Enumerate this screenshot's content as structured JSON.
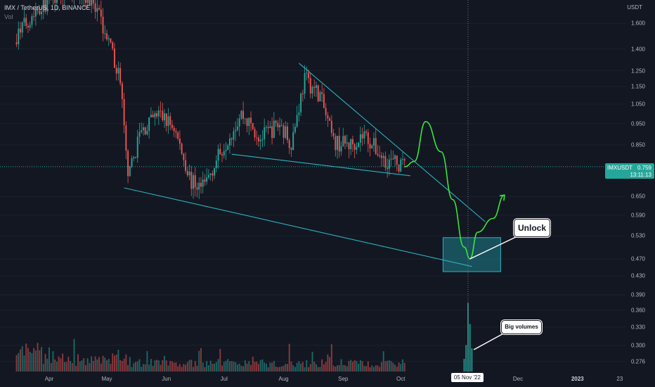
{
  "header": {
    "title": "IMX / TetherUS, 1D, BINANCE",
    "volume_label": "Vol"
  },
  "axis": {
    "unit": "USDT",
    "y_ticks": [
      "1.600",
      "1.400",
      "1.250",
      "1.150",
      "1.050",
      "0.950",
      "0.850",
      "0.650",
      "0.590",
      "0.530",
      "0.470",
      "0.430",
      "0.390",
      "0.360",
      "0.330",
      "0.300",
      "0.276"
    ],
    "x_ticks": [
      "Apr",
      "May",
      "Jun",
      "Jul",
      "Aug",
      "Sep",
      "Oct",
      "Dec",
      "2023",
      "23"
    ]
  },
  "price_tag": {
    "symbol": "IMXUSDT",
    "value": "0.759",
    "time": "13:11:13"
  },
  "date_marker": "05 Nov '22",
  "annotations": {
    "unlock": "Unlock",
    "big_volumes": "Big volumes"
  },
  "colors": {
    "background": "#131722",
    "up": "#26a69a",
    "down": "#ef5350",
    "trendline": "#2bb3c0",
    "projection": "#39e639",
    "zone": "#1e7f8c"
  },
  "chart_data": {
    "type": "candlestick",
    "title": "IMX / TetherUS, 1D, BINANCE",
    "y_scale": "log",
    "ylim": [
      0.25,
      1.9
    ],
    "current_price": 0.759,
    "x_range": [
      "2022-03-15",
      "2023-01-23"
    ],
    "anchors": [
      {
        "date": "2022-03-15",
        "price": 1.5
      },
      {
        "date": "2022-03-25",
        "price": 1.72
      },
      {
        "date": "2022-04-05",
        "price": 1.85
      },
      {
        "date": "2022-04-18",
        "price": 1.9
      },
      {
        "date": "2022-04-28",
        "price": 1.62
      },
      {
        "date": "2022-05-08",
        "price": 1.2
      },
      {
        "date": "2022-05-12",
        "price": 0.7
      },
      {
        "date": "2022-05-18",
        "price": 0.9
      },
      {
        "date": "2022-05-28",
        "price": 1.0
      },
      {
        "date": "2022-06-05",
        "price": 0.93
      },
      {
        "date": "2022-06-14",
        "price": 0.7
      },
      {
        "date": "2022-06-20",
        "price": 0.68
      },
      {
        "date": "2022-07-01",
        "price": 0.85
      },
      {
        "date": "2022-07-10",
        "price": 1.0
      },
      {
        "date": "2022-07-20",
        "price": 0.88
      },
      {
        "date": "2022-07-30",
        "price": 0.95
      },
      {
        "date": "2022-08-05",
        "price": 0.86
      },
      {
        "date": "2022-08-12",
        "price": 1.2
      },
      {
        "date": "2022-08-20",
        "price": 1.1
      },
      {
        "date": "2022-08-27",
        "price": 0.86
      },
      {
        "date": "2022-09-05",
        "price": 0.85
      },
      {
        "date": "2022-09-12",
        "price": 0.9
      },
      {
        "date": "2022-09-22",
        "price": 0.79
      },
      {
        "date": "2022-10-03",
        "price": 0.759
      }
    ],
    "trendlines": [
      {
        "from": {
          "date": "2022-05-10",
          "price": 0.68
        },
        "to": {
          "date": "2022-11-07",
          "price": 0.452
        }
      },
      {
        "from": {
          "date": "2022-07-05",
          "price": 0.81
        },
        "to": {
          "date": "2022-10-06",
          "price": 0.724
        }
      },
      {
        "from": {
          "date": "2022-08-09",
          "price": 1.3
        },
        "to": {
          "date": "2022-11-14",
          "price": 0.57
        }
      }
    ],
    "zone": {
      "from_date": "2022-10-23",
      "to_date": "2022-11-22",
      "price_low": 0.44,
      "price_high": 0.525
    },
    "projection": [
      {
        "date": "2022-10-03",
        "price": 0.759
      },
      {
        "date": "2022-10-08",
        "price": 0.78
      },
      {
        "date": "2022-10-14",
        "price": 0.96
      },
      {
        "date": "2022-10-22",
        "price": 0.82
      },
      {
        "date": "2022-10-28",
        "price": 0.64
      },
      {
        "date": "2022-11-03",
        "price": 0.5
      },
      {
        "date": "2022-11-06",
        "price": 0.47
      },
      {
        "date": "2022-11-10",
        "price": 0.54
      },
      {
        "date": "2022-11-18",
        "price": 0.58
      },
      {
        "date": "2022-11-24",
        "price": 0.655
      }
    ],
    "volume": {
      "note": "relative daily volume, 0-1",
      "big_volume_bars": [
        {
          "date": "2022-11-03",
          "value": 0.12
        },
        {
          "date": "2022-11-04",
          "value": 0.25
        },
        {
          "date": "2022-11-05",
          "value": 0.65
        },
        {
          "date": "2022-11-06",
          "value": 0.45
        },
        {
          "date": "2022-11-07",
          "value": 0.22
        }
      ]
    }
  }
}
